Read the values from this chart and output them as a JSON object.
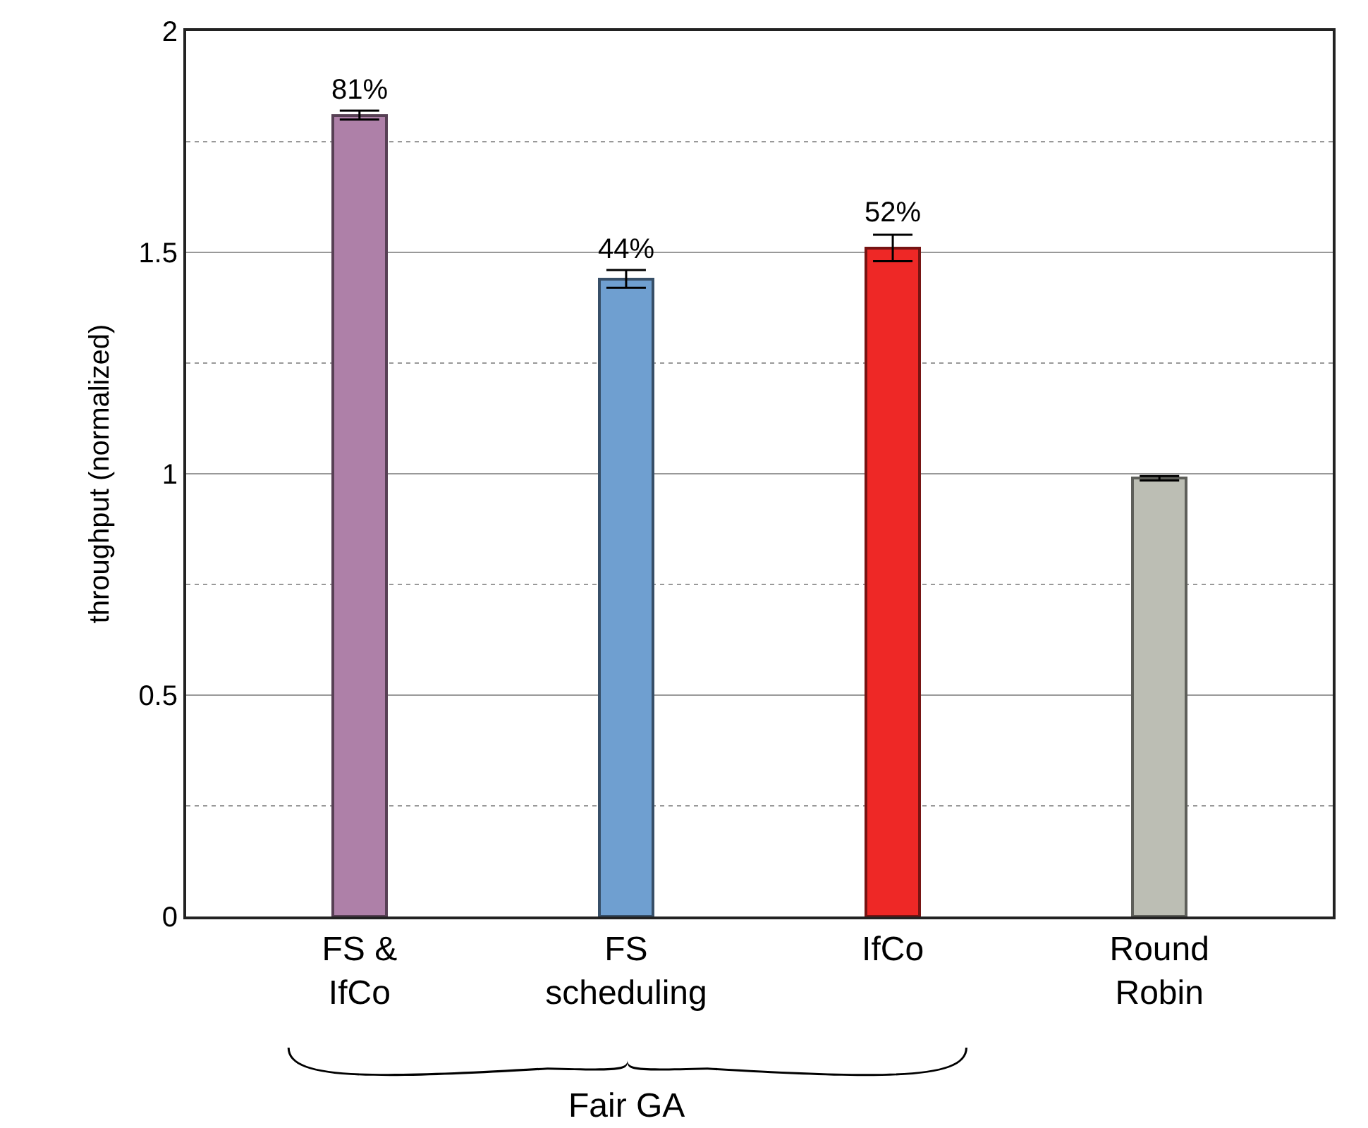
{
  "chart_data": {
    "type": "bar",
    "ylabel": "throughput (normalized)",
    "categories": [
      "FS &\nIfCo",
      "FS\nscheduling",
      "IfCo",
      "Round\nRobin"
    ],
    "values": [
      1.81,
      1.44,
      1.51,
      0.99
    ],
    "errors": [
      0.01,
      0.02,
      0.03,
      0.005
    ],
    "colors": [
      "#ae80a8",
      "#6f9fd0",
      "#ee2826",
      "#bcbeb4"
    ],
    "ylim": [
      0,
      2
    ],
    "yticks": [
      0,
      0.5,
      1,
      1.5,
      2
    ],
    "grid": "y",
    "annotations": [
      {
        "text": "81%",
        "x": "FS &\nIfCo",
        "y": 1.82
      },
      {
        "text": "44%",
        "x": "FS\nscheduling",
        "y": 1.46
      },
      {
        "text": "52%",
        "x": "IfCo",
        "y": 1.54
      },
      "Fair GA"
    ]
  }
}
